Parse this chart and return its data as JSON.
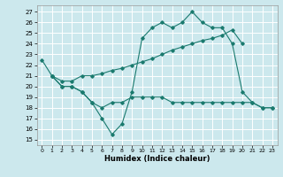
{
  "xlabel": "Humidex (Indice chaleur)",
  "bg_color": "#cce8ed",
  "grid_color": "#ffffff",
  "line_color": "#1a7a6e",
  "xlim": [
    -0.5,
    23.5
  ],
  "ylim": [
    14.5,
    27.6
  ],
  "yticks": [
    15,
    16,
    17,
    18,
    19,
    20,
    21,
    22,
    23,
    24,
    25,
    26,
    27
  ],
  "xticks": [
    0,
    1,
    2,
    3,
    4,
    5,
    6,
    7,
    8,
    9,
    10,
    11,
    12,
    13,
    14,
    15,
    16,
    17,
    18,
    19,
    20,
    21,
    22,
    23
  ],
  "line1_x": [
    0,
    1,
    2,
    3,
    4,
    5,
    6,
    7,
    8,
    9,
    10,
    11,
    12,
    13,
    14,
    15,
    16,
    17,
    18,
    19,
    20,
    21,
    22,
    23
  ],
  "line1_y": [
    22.5,
    21.0,
    20.0,
    20.0,
    19.5,
    18.5,
    17.0,
    15.5,
    16.5,
    19.5,
    24.5,
    25.5,
    26.0,
    25.5,
    26.0,
    27.0,
    26.0,
    25.5,
    25.5,
    24.0,
    19.5,
    18.5,
    18.0,
    18.0
  ],
  "line2_x": [
    1,
    2,
    3,
    4,
    5,
    6,
    7,
    8,
    9,
    10,
    11,
    12,
    13,
    14,
    15,
    16,
    17,
    18,
    19,
    20
  ],
  "line2_y": [
    21.0,
    20.5,
    20.5,
    21.0,
    21.0,
    21.2,
    21.5,
    21.7,
    22.0,
    22.3,
    22.6,
    23.0,
    23.4,
    23.7,
    24.0,
    24.3,
    24.5,
    24.8,
    25.3,
    24.0
  ],
  "line3_x": [
    1,
    2,
    3,
    4,
    5,
    6,
    7,
    8,
    9,
    10,
    11,
    12,
    13,
    14,
    15,
    16,
    17,
    18,
    19,
    20,
    21,
    22,
    23
  ],
  "line3_y": [
    21.0,
    20.0,
    20.0,
    19.5,
    18.5,
    18.0,
    18.5,
    18.5,
    19.0,
    19.0,
    19.0,
    19.0,
    18.5,
    18.5,
    18.5,
    18.5,
    18.5,
    18.5,
    18.5,
    18.5,
    18.5,
    18.0,
    18.0
  ]
}
